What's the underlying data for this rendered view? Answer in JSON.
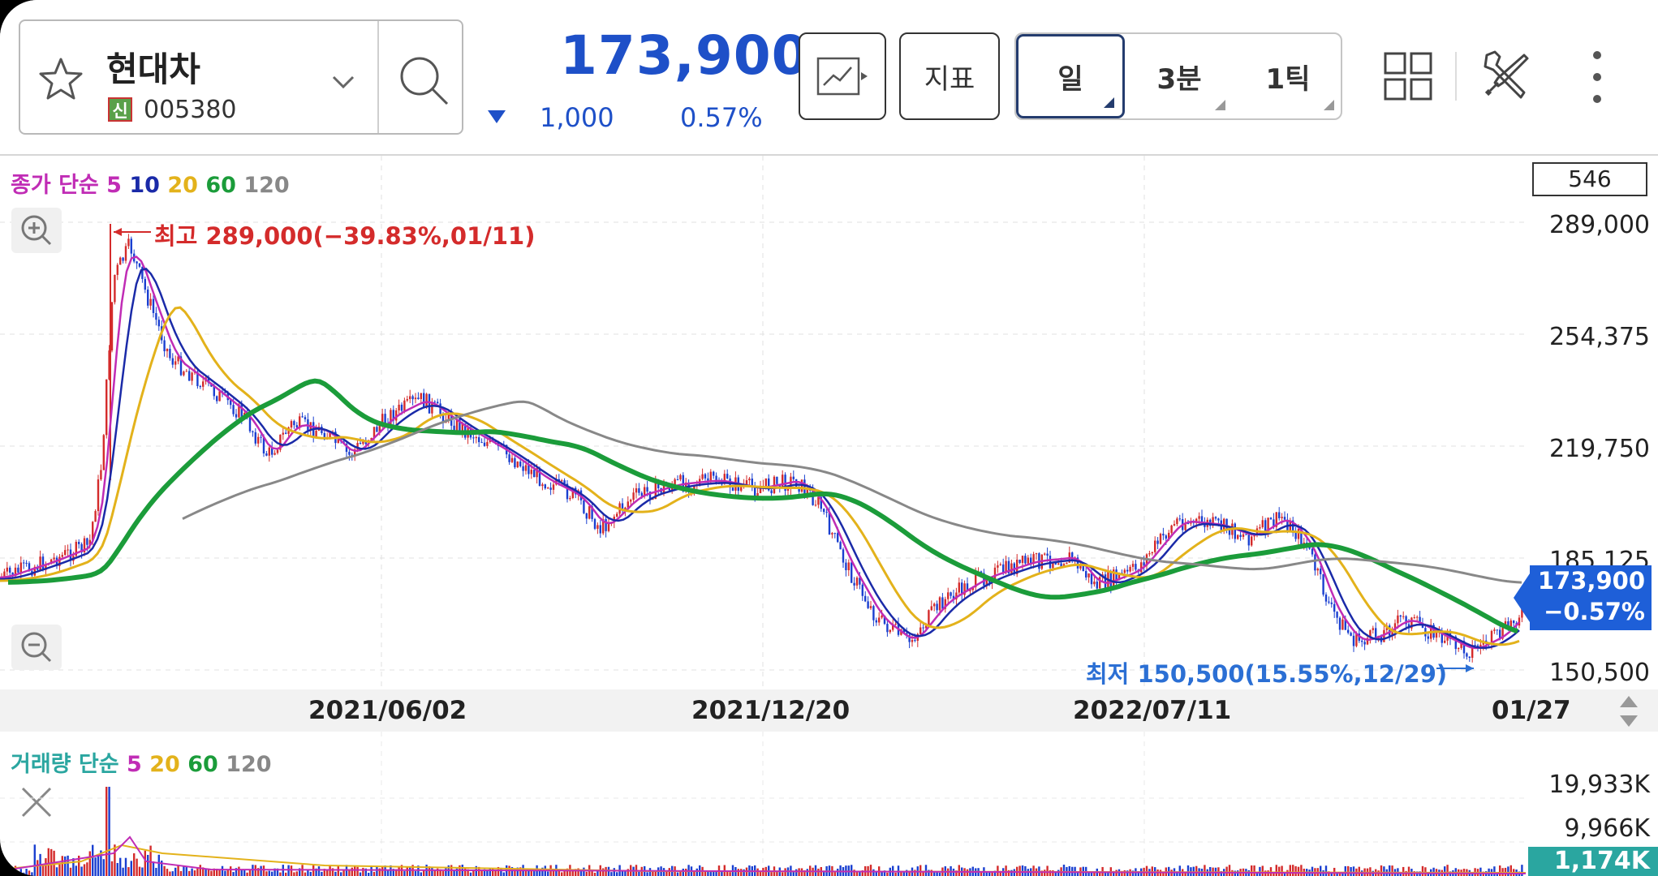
{
  "stock": {
    "name": "현대차",
    "badge": "신",
    "code": "005380",
    "price": "173,900",
    "change": "1,000",
    "change_pct": "0.57%",
    "direction": "down"
  },
  "toolbar": {
    "indicator_label": "지표",
    "periods": [
      {
        "label": "일",
        "active": true
      },
      {
        "label": "3분",
        "active": false
      },
      {
        "label": "1틱",
        "active": false
      }
    ]
  },
  "price_chart": {
    "legend_prefix": "종가 단순",
    "ma_periods": [
      "5",
      "10",
      "20",
      "60",
      "120"
    ],
    "ma_colors": [
      "#c02cb5",
      "#1a2aa8",
      "#e3b21b",
      "#1b9c3a",
      "#888888"
    ],
    "candle_count": "546",
    "y_ticks": [
      "289,000",
      "254,375",
      "219,750",
      "185,125",
      "150,500"
    ],
    "current_tag_price": "173,900",
    "current_tag_pct": "−0.57%",
    "high_annotation": "최고 289,000(−39.83%,01/11)",
    "low_annotation": "최저 150,500(15.55%,12/29)"
  },
  "x_axis": {
    "labels": [
      "2021/06/02",
      "2021/12/20",
      "2022/07/11",
      "01/27"
    ]
  },
  "volume_chart": {
    "legend_prefix": "거래량 단순",
    "ma_periods": [
      "5",
      "20",
      "60",
      "120"
    ],
    "ma_colors": [
      "#c02cb5",
      "#e3b21b",
      "#1b9c3a",
      "#888888"
    ],
    "y_ticks": [
      "19,933K",
      "9,966K"
    ],
    "current_volume": "1,174K"
  },
  "colors": {
    "accent_blue": "#1e50c8",
    "up_red": "#d42b2b",
    "down_blue": "#1a3fd0"
  }
}
